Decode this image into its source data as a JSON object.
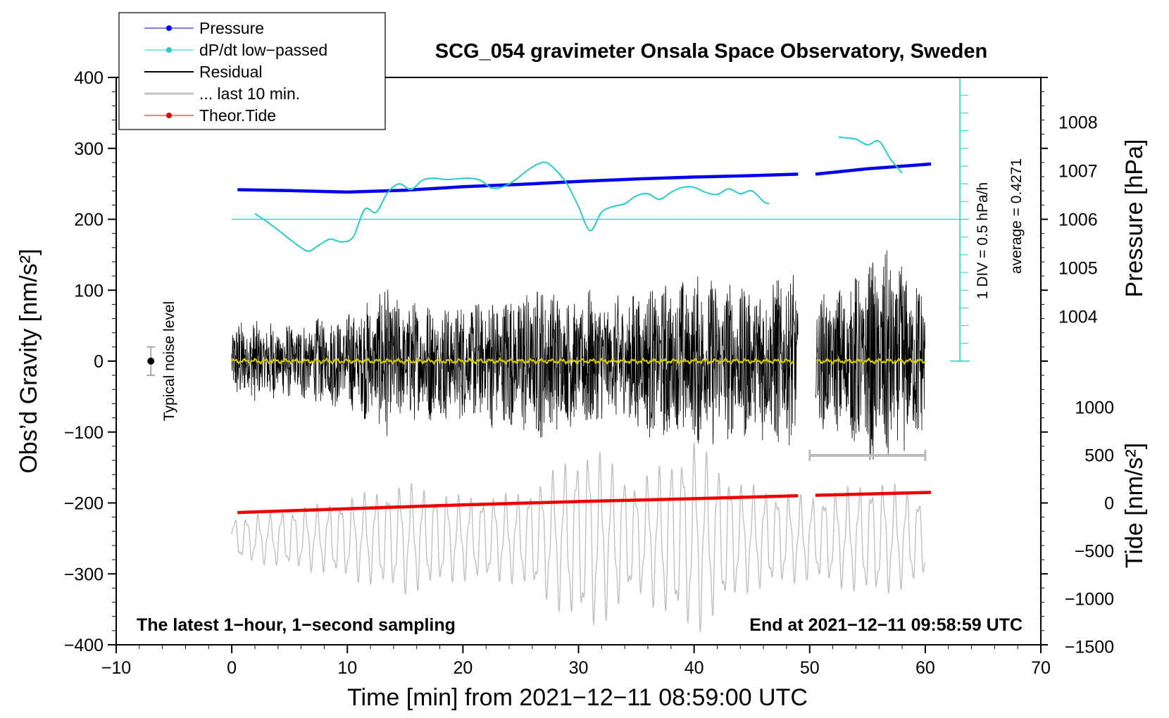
{
  "chart_data": {
    "type": "line",
    "title": "SCG_054 gravimeter Onsala Space Observatory, Sweden",
    "xlabel": "Time [min] from 2021−12−11 08:59:00 UTC",
    "ylabel_left": "Obs’d Gravity [nm/s²]",
    "ylabel_right_top": "Pressure [hPa]",
    "ylabel_right_bottom": "Tide [nm/s²]",
    "xlim": [
      -10,
      70
    ],
    "ylim": [
      -400,
      400
    ],
    "x_ticks": [
      -10,
      0,
      10,
      20,
      30,
      40,
      50,
      60,
      70
    ],
    "x_tick_labels": [
      "−10",
      "0",
      "10",
      "20",
      "30",
      "40",
      "50",
      "60",
      "70"
    ],
    "y_ticks": [
      400,
      300,
      200,
      100,
      0,
      -100,
      -200,
      -300,
      -400
    ],
    "y_tick_labels": [
      "400",
      "300",
      "200",
      "100",
      "0",
      "−100",
      "−200",
      "−300",
      "−400"
    ],
    "pressure_axis": {
      "ticks": [
        1008,
        1007,
        1006,
        1005,
        1004
      ],
      "tick_labels": [
        "1008",
        "1007",
        "1006",
        "1005",
        "1004"
      ],
      "scale_gravity_per_hpa": 68.4,
      "ref_hpa": 1006,
      "ref_gravity": 200
    },
    "tide_axis": {
      "ticks": [
        1000,
        500,
        0,
        -500,
        -1000,
        -1500
      ],
      "tick_labels": [
        "1000",
        "500",
        "0",
        "−500",
        "−1000",
        "−1500"
      ],
      "scale_gravity_per_unit": 0.135,
      "ref_value": 0,
      "ref_gravity": -200
    },
    "legend": {
      "placement": "top-left",
      "entries": [
        {
          "name": "Pressure",
          "color": "#0000ee",
          "marker": true
        },
        {
          "name": "dP/dt low−passed",
          "color": "#22cccc",
          "marker": true
        },
        {
          "name": "Residual",
          "color": "#000000",
          "marker": false
        },
        {
          "name": "... last 10 min.",
          "color": "#c0c0c0",
          "marker": false
        },
        {
          "name": "Theor.Tide",
          "color": "#ee0000",
          "marker": true
        }
      ]
    },
    "series": [
      {
        "name": "Pressure",
        "color": "#0000ee",
        "unit": "hPa",
        "x": [
          0.5,
          5,
          10,
          15,
          20,
          25,
          30,
          35,
          40,
          45,
          49,
          50.5,
          55,
          60,
          60.5
        ],
        "values": [
          1006.61,
          1006.59,
          1006.56,
          1006.6,
          1006.67,
          1006.72,
          1006.78,
          1006.83,
          1006.87,
          1006.9,
          1006.93,
          1006.93,
          1007.04,
          1007.13,
          1007.14
        ]
      },
      {
        "name": "dP/dt low−passed",
        "color": "#22cccc",
        "unit": "gravity units",
        "segments": [
          {
            "x": [
              2,
              3,
              4,
              5,
              6,
              6.7,
              7.5,
              8.5,
              9.5,
              10.5,
              11.5,
              12.5,
              13.5,
              14.5,
              15.5,
              16.5,
              17.5,
              18.5,
              19.5,
              20.5,
              21.5,
              22.5,
              23.5,
              24.5,
              25.5,
              26.5,
              27.2,
              28,
              29,
              30,
              31,
              32,
              33,
              34,
              35,
              36,
              37,
              38,
              39,
              40,
              41,
              42,
              43,
              44,
              45,
              46,
              46.5
            ],
            "values": [
              208,
              197,
              185,
              172,
              160,
              155,
              163,
              172,
              168,
              175,
              214,
              210,
              238,
              250,
              242,
              255,
              258,
              256,
              257,
              258,
              255,
              244,
              246,
              255,
              268,
              278,
              280,
              270,
              250,
              218,
              184,
              210,
              218,
              222,
              233,
              236,
              228,
              238,
              245,
              245,
              238,
              235,
              243,
              236,
              240,
              225,
              222
            ]
          },
          {
            "x": [
              52.5,
              53,
              54,
              55,
              56,
              57,
              58
            ],
            "values": [
              316,
              315,
              313,
              305,
              310,
              285,
              265
            ]
          }
        ]
      },
      {
        "name": "Residual",
        "color": "#000000",
        "x_range": [
          0,
          60
        ],
        "gap": [
          49,
          50.5
        ],
        "envelope_x": [
          0,
          5,
          10,
          13,
          13.5,
          14,
          20,
          27,
          30,
          31.5,
          32,
          36,
          41,
          44,
          48.5,
          49,
          52,
          56.5,
          60
        ],
        "envelope_amp": [
          60,
          55,
          70,
          100,
          145,
          90,
          85,
          115,
          90,
          120,
          85,
          110,
          125,
          110,
          130,
          90,
          100,
          160,
          110
        ]
      },
      {
        "name": "Residual (last 10 min, low−pass)",
        "color": "#cccc00",
        "x_range": [
          0,
          60
        ],
        "approx_value": 0
      },
      {
        "name": "... last 10 min.",
        "color": "#c0c0c0",
        "x_range": [
          0,
          60
        ],
        "envelope_x": [
          0,
          8,
          15,
          20,
          25,
          31,
          35,
          40,
          44,
          50,
          56,
          60
        ],
        "envelope_amp": [
          30,
          50,
          80,
          60,
          65,
          135,
          80,
          140,
          80,
          60,
          85,
          60
        ],
        "center_gravity": -250
      }
    ],
    "theor_tide": {
      "name": "Theor.Tide",
      "color": "#ee0000",
      "unit": "nm/s²",
      "x": [
        0.5,
        10,
        20,
        30,
        40,
        49,
        50.5,
        60.5
      ],
      "values": [
        -100,
        -60,
        -20,
        15,
        45,
        75,
        80,
        110
      ]
    },
    "pressure_scale_bar": {
      "label": "1 DIV = 0.5 hPa/h",
      "x": 63
    },
    "average_label": "average = 0.4271",
    "noise_label": "Typical noise level",
    "noise_bar": {
      "x": -7,
      "center": 0,
      "half_width": 20
    },
    "window_bar": {
      "x_range": [
        50,
        60
      ],
      "gravity": -133
    },
    "annotation_left": "The latest 1−hour, 1−second sampling",
    "annotation_right": "End at 2021−12−11 09:58:59 UTC"
  }
}
